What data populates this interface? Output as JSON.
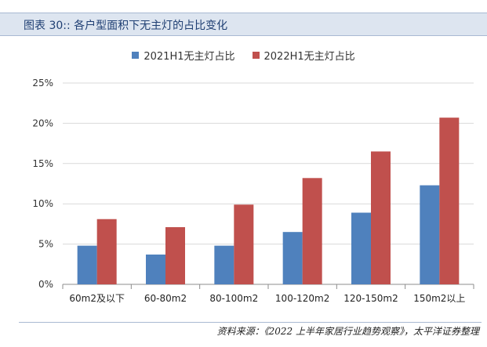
{
  "header": {
    "figure_label": "图表 30::",
    "title": "各户型面积下无主灯的占比变化"
  },
  "colors": {
    "series_2021": "#4f81bd",
    "series_2022": "#c0504d",
    "header_bg": "#dde5f0",
    "header_text": "#1f3f73"
  },
  "chart_data": {
    "type": "bar",
    "categories": [
      "60m2及以下",
      "60-80m2",
      "80-100m2",
      "100-120m2",
      "120-150m2",
      "150m2以上"
    ],
    "series": [
      {
        "name": "2021H1无主灯占比",
        "values": [
          4.8,
          3.7,
          4.8,
          6.5,
          8.9,
          12.3
        ]
      },
      {
        "name": "2022H1无主灯占比",
        "values": [
          8.1,
          7.1,
          9.9,
          13.2,
          16.5,
          20.7
        ]
      }
    ],
    "ylim": [
      0,
      25
    ],
    "yticks": [
      "0%",
      "5%",
      "10%",
      "15%",
      "20%",
      "25%"
    ],
    "y_unit": "%",
    "grid": true,
    "legend": "top-center",
    "title": "",
    "xlabel": "",
    "ylabel": ""
  },
  "footer": {
    "source": "资料来源：《2022 上半年家居行业趋势观察》，太平洋证券整理"
  }
}
